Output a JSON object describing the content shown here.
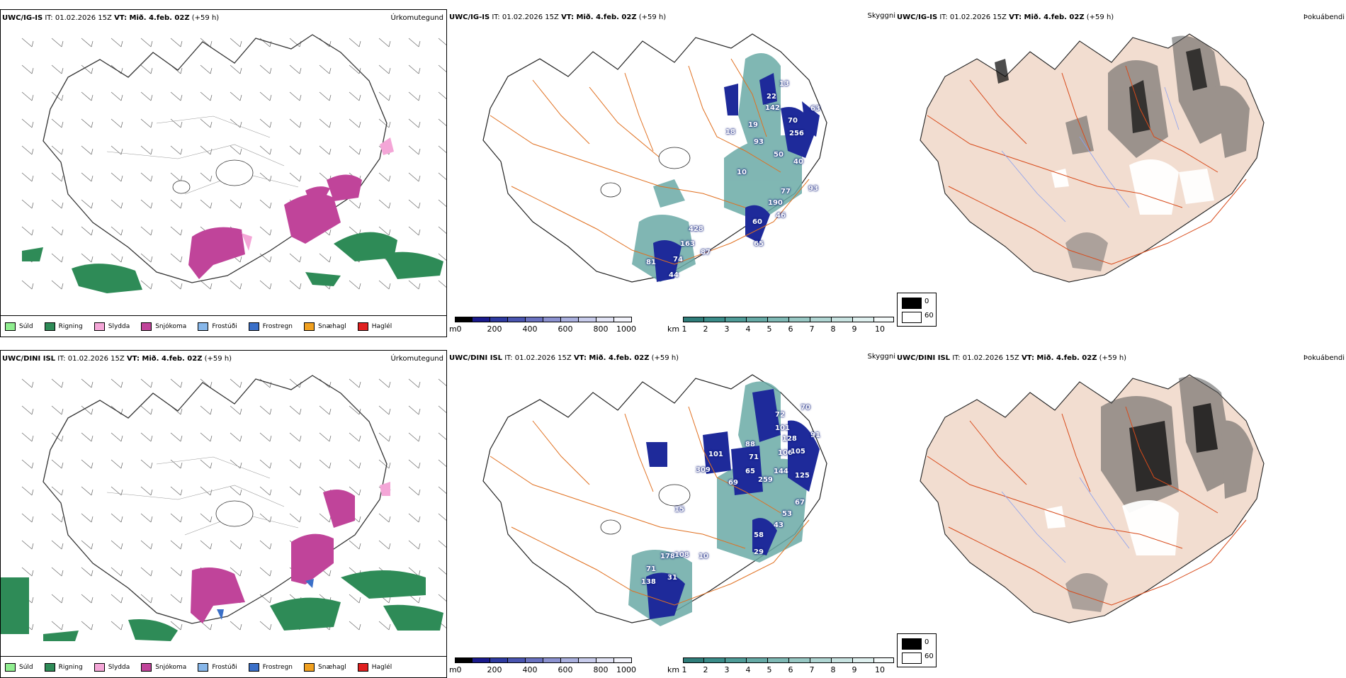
{
  "precip_legend": [
    {
      "label": "Súld",
      "color": "#90ee90"
    },
    {
      "label": "Rigning",
      "color": "#2e8b57"
    },
    {
      "label": "Slydda",
      "color": "#f4a6d7"
    },
    {
      "label": "Snjókoma",
      "color": "#c0449a"
    },
    {
      "label": "Frostúði",
      "color": "#87b7ea"
    },
    {
      "label": "Frostregn",
      "color": "#3a6fc8"
    },
    {
      "label": "Snæhagl",
      "color": "#f0a020"
    },
    {
      "label": "Haglél",
      "color": "#e02020"
    }
  ],
  "rows": [
    {
      "precip": {
        "model": "UWC/IG-IS",
        "it": "IT: 01.02.2026 15Z",
        "vt": "VT: Mið. 4.feb. 02Z",
        "lead": "(+59 h)",
        "corner": "Úrkomutegund"
      },
      "cloud": {
        "model": "UWC/IG-IS",
        "it": "IT: 01.02.2026 15Z",
        "vt": "VT: Mið. 4.feb. 02Z",
        "lead": "(+59 h)",
        "corner": "Skyggni"
      },
      "fog": {
        "model": "UWC/IG-IS",
        "it": "IT: 01.02.2026 15Z",
        "vt": "VT: Mið. 4.feb. 02Z",
        "lead": "(+59 h)",
        "corner": "Þokuábendi"
      },
      "numbers": [
        "13",
        "22",
        "142",
        "70",
        "18",
        "63",
        "19",
        "256",
        "93",
        "50",
        "10",
        "40",
        "77",
        "93",
        "190",
        "46",
        "60",
        "65",
        "428",
        "163",
        "87",
        "74",
        "81",
        "44"
      ]
    },
    {
      "precip": {
        "model": "UWC/DINI ISL",
        "it": "IT: 01.02.2026 15Z",
        "vt": "VT: Mið. 4.feb. 02Z",
        "lead": "(+59 h)",
        "corner": "Úrkomutegund"
      },
      "cloud": {
        "model": "UWC/DINI ISL",
        "it": "IT: 01.02.2026 15Z",
        "vt": "VT: Mið. 4.feb. 02Z",
        "lead": "(+59 h)",
        "corner": "Skyggni"
      },
      "fog": {
        "model": "UWC/DINI ISL",
        "it": "IT: 01.02.2026 15Z",
        "vt": "VT: Mið. 4.feb. 02Z",
        "lead": "(+59 h)",
        "corner": "Þokuábendi"
      },
      "numbers": [
        "72",
        "70",
        "101",
        "128",
        "91",
        "88",
        "101",
        "71",
        "106",
        "105",
        "309",
        "65",
        "144",
        "69",
        "259",
        "125",
        "67",
        "53",
        "43",
        "58",
        "29",
        "178",
        "108",
        "10",
        "71",
        "31",
        "138",
        "15"
      ]
    }
  ],
  "height_bar": {
    "unit": "m",
    "ticks": [
      "0",
      "200",
      "400",
      "600",
      "800",
      "1000"
    ],
    "colors": [
      "#000000",
      "#1a1a8c",
      "#2e3aa0",
      "#4a55b0",
      "#6a72c0",
      "#8c92d0",
      "#aab0de",
      "#c8cceb",
      "#e2e4f5",
      "#f2f3fb"
    ]
  },
  "vis_bar": {
    "unit": "km",
    "ticks": [
      "1",
      "2",
      "3",
      "4",
      "5",
      "6",
      "7",
      "8",
      "9",
      "10"
    ],
    "colors": [
      "#2f7d7a",
      "#3a8c89",
      "#4f9c98",
      "#66aaa6",
      "#7fb9b5",
      "#98c8c4",
      "#b0d6d3",
      "#c8e3e1",
      "#dff0ef",
      "#f4fafa"
    ]
  },
  "fog_legend": {
    "dark": "0",
    "light": "60"
  }
}
